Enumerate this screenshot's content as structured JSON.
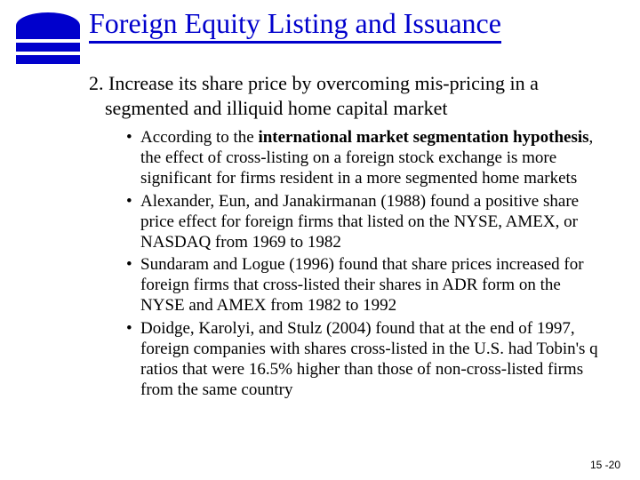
{
  "colors": {
    "brand": "#0000cc",
    "text": "#000000",
    "background": "#ffffff"
  },
  "title": "Foreign Equity Listing and Issuance",
  "mainPoint": {
    "number": "2.",
    "text": "Increase its share price by overcoming mis-pricing in a segmented and illiquid home capital market"
  },
  "bullets": [
    {
      "pre": "According to the ",
      "bold": "international market segmentation hypothesis",
      "post": ", the effect of cross-listing on a foreign stock exchange is more significant for firms resident in a more segmented home markets"
    },
    {
      "pre": "Alexander, Eun, and Janakirmanan (1988) found a positive share price effect for foreign firms that listed on the NYSE, AMEX, or NASDAQ from 1969 to 1982",
      "bold": "",
      "post": ""
    },
    {
      "pre": "Sundaram and Logue (1996) found that share prices increased for foreign firms that cross-listed their shares in ADR form on the NYSE and AMEX from 1982 to 1992",
      "bold": "",
      "post": ""
    },
    {
      "pre": "Doidge, Karolyi, and Stulz (2004) found that at the end of 1997, foreign companies with shares cross-listed in the U.S. had Tobin's q ratios that were 16.5% higher than those of non-cross-listed firms from the same country",
      "bold": "",
      "post": ""
    }
  ],
  "pageNumber": "15 -20"
}
